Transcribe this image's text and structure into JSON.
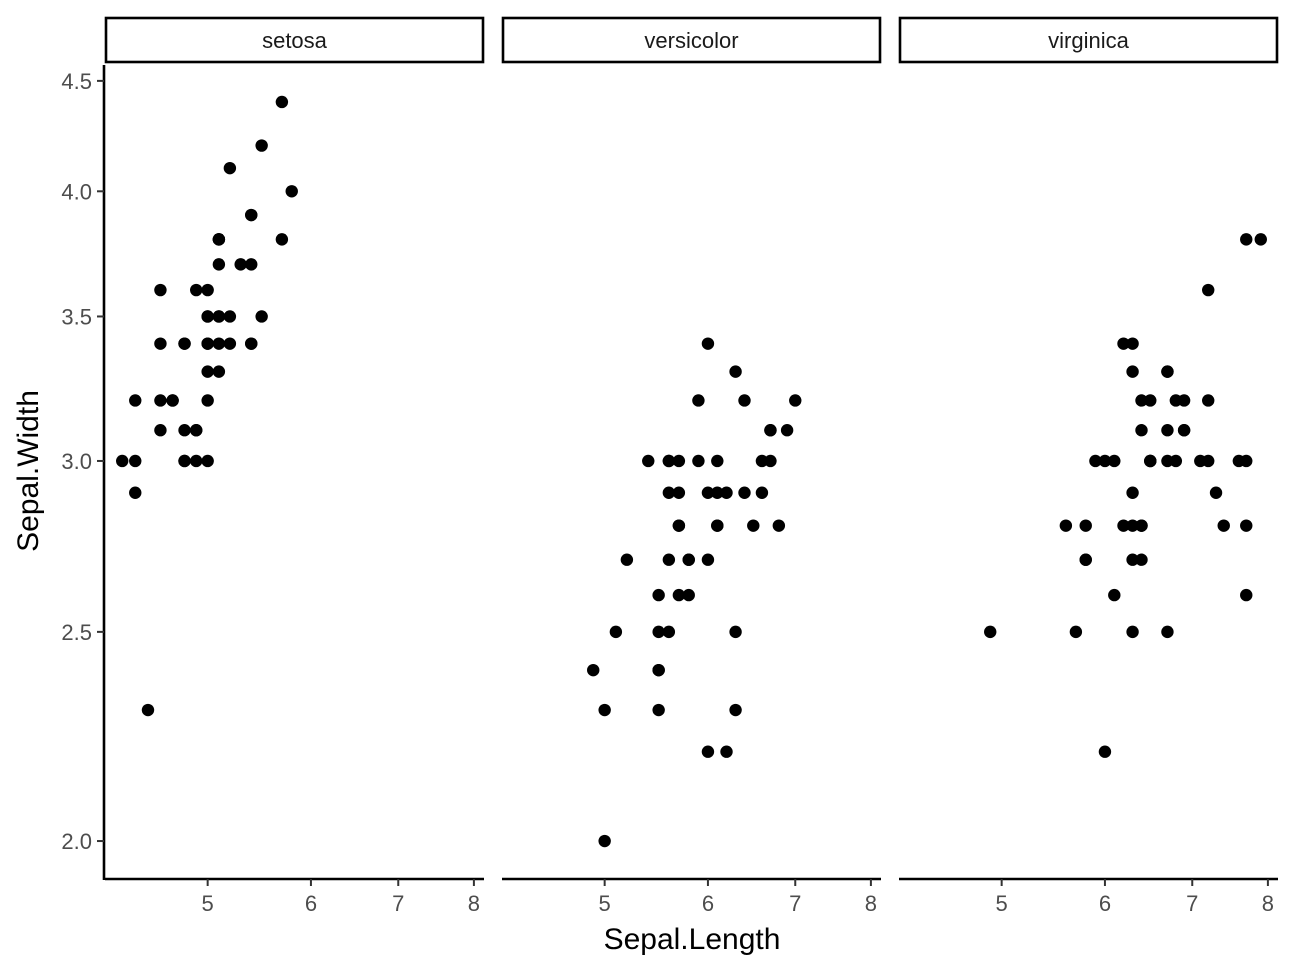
{
  "chart_data": {
    "type": "scatter",
    "xlabel": "Sepal.Length",
    "ylabel": "Sepal.Width",
    "x_scale": "log",
    "y_scale": "log",
    "xlim": [
      4.3,
      7.9
    ],
    "ylim": [
      2.0,
      4.4
    ],
    "x_ticks": [
      "5",
      "6",
      "7",
      "8"
    ],
    "y_ticks": [
      "2.0",
      "2.5",
      "3.0",
      "3.5",
      "4.0",
      "4.5"
    ],
    "grid": false,
    "legend": "none",
    "point_color": "#000000",
    "facets": [
      {
        "label": "setosa",
        "points": [
          [
            5.1,
            3.5
          ],
          [
            4.9,
            3.0
          ],
          [
            4.7,
            3.2
          ],
          [
            4.6,
            3.1
          ],
          [
            5.0,
            3.6
          ],
          [
            5.4,
            3.9
          ],
          [
            4.6,
            3.4
          ],
          [
            5.0,
            3.4
          ],
          [
            4.4,
            2.9
          ],
          [
            4.9,
            3.1
          ],
          [
            5.4,
            3.7
          ],
          [
            4.8,
            3.4
          ],
          [
            4.8,
            3.0
          ],
          [
            4.3,
            3.0
          ],
          [
            5.8,
            4.0
          ],
          [
            5.7,
            4.4
          ],
          [
            5.4,
            3.9
          ],
          [
            5.1,
            3.5
          ],
          [
            5.7,
            3.8
          ],
          [
            5.1,
            3.8
          ],
          [
            5.4,
            3.4
          ],
          [
            5.1,
            3.7
          ],
          [
            4.6,
            3.6
          ],
          [
            5.1,
            3.3
          ],
          [
            4.8,
            3.4
          ],
          [
            5.0,
            3.0
          ],
          [
            5.0,
            3.4
          ],
          [
            5.2,
            3.5
          ],
          [
            5.2,
            3.4
          ],
          [
            4.7,
            3.2
          ],
          [
            4.8,
            3.1
          ],
          [
            5.4,
            3.4
          ],
          [
            5.2,
            4.1
          ],
          [
            5.5,
            4.2
          ],
          [
            4.9,
            3.1
          ],
          [
            5.0,
            3.2
          ],
          [
            5.5,
            3.5
          ],
          [
            4.9,
            3.6
          ],
          [
            4.4,
            3.0
          ],
          [
            5.1,
            3.4
          ],
          [
            5.0,
            3.5
          ],
          [
            4.5,
            2.3
          ],
          [
            4.4,
            3.2
          ],
          [
            5.0,
            3.5
          ],
          [
            5.1,
            3.8
          ],
          [
            4.8,
            3.0
          ],
          [
            5.1,
            3.8
          ],
          [
            4.6,
            3.2
          ],
          [
            5.3,
            3.7
          ],
          [
            5.0,
            3.3
          ]
        ]
      },
      {
        "label": "versicolor",
        "points": [
          [
            7.0,
            3.2
          ],
          [
            6.4,
            3.2
          ],
          [
            6.9,
            3.1
          ],
          [
            5.5,
            2.3
          ],
          [
            6.5,
            2.8
          ],
          [
            5.7,
            2.8
          ],
          [
            6.3,
            3.3
          ],
          [
            4.9,
            2.4
          ],
          [
            6.6,
            2.9
          ],
          [
            5.2,
            2.7
          ],
          [
            5.0,
            2.0
          ],
          [
            5.9,
            3.0
          ],
          [
            6.0,
            2.2
          ],
          [
            6.1,
            2.9
          ],
          [
            5.6,
            2.9
          ],
          [
            6.7,
            3.1
          ],
          [
            5.6,
            3.0
          ],
          [
            5.8,
            2.7
          ],
          [
            6.2,
            2.2
          ],
          [
            5.6,
            2.5
          ],
          [
            5.9,
            3.2
          ],
          [
            6.1,
            2.8
          ],
          [
            6.3,
            2.5
          ],
          [
            6.1,
            2.8
          ],
          [
            6.4,
            2.9
          ],
          [
            6.6,
            3.0
          ],
          [
            6.8,
            2.8
          ],
          [
            6.7,
            3.0
          ],
          [
            6.0,
            2.9
          ],
          [
            5.7,
            2.6
          ],
          [
            5.5,
            2.4
          ],
          [
            5.5,
            2.4
          ],
          [
            5.8,
            2.7
          ],
          [
            6.0,
            2.7
          ],
          [
            5.4,
            3.0
          ],
          [
            6.0,
            3.4
          ],
          [
            6.7,
            3.1
          ],
          [
            6.3,
            2.3
          ],
          [
            5.6,
            3.0
          ],
          [
            5.5,
            2.5
          ],
          [
            5.5,
            2.6
          ],
          [
            6.1,
            3.0
          ],
          [
            5.8,
            2.6
          ],
          [
            5.0,
            2.3
          ],
          [
            5.6,
            2.7
          ],
          [
            5.7,
            3.0
          ],
          [
            5.7,
            2.9
          ],
          [
            6.2,
            2.9
          ],
          [
            5.1,
            2.5
          ],
          [
            5.7,
            2.8
          ]
        ]
      },
      {
        "label": "virginica",
        "points": [
          [
            6.3,
            3.3
          ],
          [
            5.8,
            2.7
          ],
          [
            7.1,
            3.0
          ],
          [
            6.3,
            2.9
          ],
          [
            6.5,
            3.0
          ],
          [
            7.6,
            3.0
          ],
          [
            4.9,
            2.5
          ],
          [
            7.3,
            2.9
          ],
          [
            6.7,
            2.5
          ],
          [
            7.2,
            3.6
          ],
          [
            6.5,
            3.2
          ],
          [
            6.4,
            2.7
          ],
          [
            6.8,
            3.0
          ],
          [
            5.7,
            2.5
          ],
          [
            5.8,
            2.8
          ],
          [
            6.4,
            3.2
          ],
          [
            6.5,
            3.0
          ],
          [
            7.7,
            3.8
          ],
          [
            7.7,
            2.6
          ],
          [
            6.0,
            2.2
          ],
          [
            6.9,
            3.2
          ],
          [
            5.6,
            2.8
          ],
          [
            7.7,
            2.8
          ],
          [
            6.3,
            2.7
          ],
          [
            6.7,
            3.3
          ],
          [
            7.2,
            3.2
          ],
          [
            6.2,
            2.8
          ],
          [
            6.1,
            3.0
          ],
          [
            6.4,
            2.8
          ],
          [
            7.2,
            3.0
          ],
          [
            7.4,
            2.8
          ],
          [
            7.9,
            3.8
          ],
          [
            6.4,
            2.8
          ],
          [
            6.3,
            2.8
          ],
          [
            6.1,
            2.6
          ],
          [
            7.7,
            3.0
          ],
          [
            6.3,
            3.4
          ],
          [
            6.4,
            3.1
          ],
          [
            6.0,
            3.0
          ],
          [
            6.9,
            3.1
          ],
          [
            6.7,
            3.1
          ],
          [
            6.9,
            3.1
          ],
          [
            5.8,
            2.7
          ],
          [
            6.8,
            3.2
          ],
          [
            6.7,
            3.3
          ],
          [
            6.7,
            3.0
          ],
          [
            6.3,
            2.5
          ],
          [
            6.5,
            3.0
          ],
          [
            6.2,
            3.4
          ],
          [
            5.9,
            3.0
          ]
        ]
      }
    ]
  }
}
